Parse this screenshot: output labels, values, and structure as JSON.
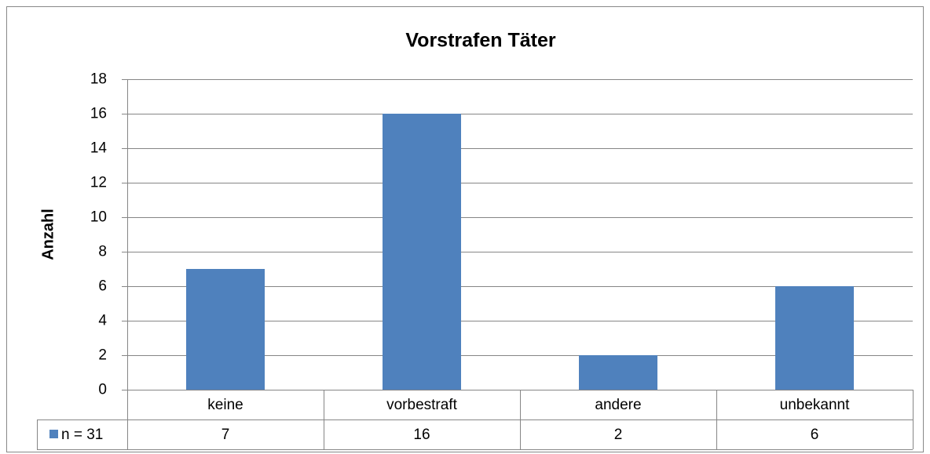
{
  "chart_data": {
    "type": "bar",
    "title": "Vorstrafen Täter",
    "y_label": "Anzahl",
    "categories": [
      "keine",
      "vorbestraft",
      "andere",
      "unbekannt"
    ],
    "series": [
      {
        "name": "n = 31",
        "color": "#4f81bd",
        "values": [
          7,
          16,
          2,
          6
        ]
      }
    ],
    "ylim": [
      0,
      18
    ],
    "yticks": [
      0,
      2,
      4,
      6,
      8,
      10,
      12,
      14,
      16,
      18
    ],
    "grid": true,
    "data_table": true
  }
}
